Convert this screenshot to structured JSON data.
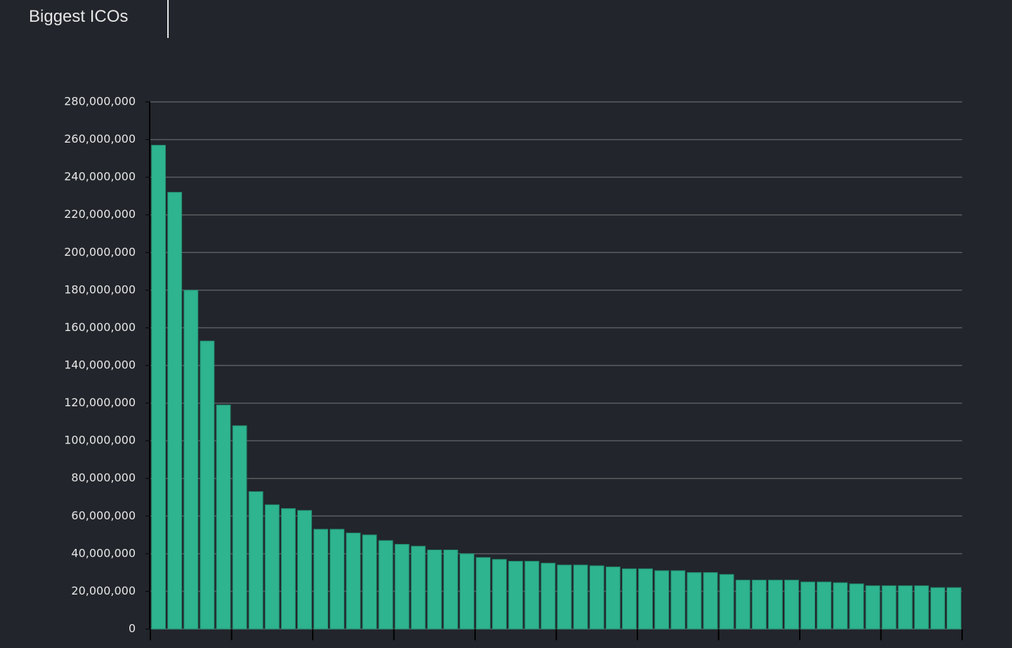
{
  "chart_data": {
    "type": "bar",
    "title": "Biggest ICOs",
    "categories": [
      null,
      null,
      null,
      null,
      null,
      null,
      null,
      null,
      null,
      null,
      null,
      null,
      null,
      null,
      null,
      null,
      null,
      null,
      null,
      null,
      null,
      null,
      null,
      null,
      null,
      null,
      null,
      null,
      null,
      null,
      null,
      null,
      null,
      null,
      null,
      null,
      null,
      null,
      null,
      null,
      null,
      null,
      null,
      null,
      null,
      null,
      null,
      null,
      null,
      null
    ],
    "values": [
      257000000,
      232000000,
      180000000,
      153000000,
      119000000,
      108000000,
      73000000,
      66000000,
      64000000,
      63000000,
      53000000,
      53000000,
      51000000,
      50000000,
      47000000,
      45000000,
      44000000,
      42000000,
      42000000,
      40000000,
      38000000,
      37000000,
      36000000,
      36000000,
      35000000,
      34000000,
      34000000,
      33600000,
      33000000,
      32000000,
      32000000,
      31000000,
      31000000,
      30000000,
      30000000,
      29000000,
      26000000,
      26000000,
      26000000,
      26000000,
      25000000,
      25000000,
      24600000,
      24000000,
      23000000,
      23000000,
      23000000,
      23000000,
      22000000,
      22000000
    ],
    "color": "#2eb48f",
    "ylim": [
      0,
      280000000
    ],
    "yticks": [
      0,
      {
        "value": 20000000,
        "label": "20,000,000"
      },
      {
        "value": 40000000,
        "label": "40,000,000"
      },
      {
        "value": 60000000,
        "label": "60,000,000"
      },
      {
        "value": 80000000,
        "label": "80,000,000"
      },
      {
        "value": 100000000,
        "label": "100,000,000"
      },
      {
        "value": 120000000,
        "label": "120,000,000"
      },
      {
        "value": 140000000,
        "label": "140,000,000"
      },
      {
        "value": 160000000,
        "label": "160,000,000"
      },
      {
        "value": 180000000,
        "label": "180,000,000"
      },
      {
        "value": 200000000,
        "label": "200,000,000"
      },
      {
        "value": 220000000,
        "label": "220,000,000"
      },
      {
        "value": 240000000,
        "label": "240,000,000"
      },
      {
        "value": 260000000,
        "label": "260,000,000"
      },
      {
        "value": 280000000,
        "label": "280,000,000"
      }
    ],
    "grid": true
  }
}
